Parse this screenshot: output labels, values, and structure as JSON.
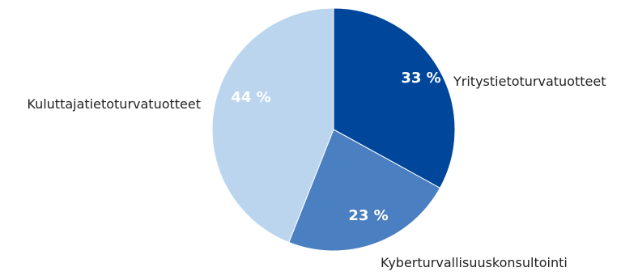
{
  "chart_data": {
    "type": "pie",
    "start_angle_deg": 0,
    "direction": "clockwise",
    "slices": [
      {
        "label": "Yritystietoturvatuotteet",
        "value": 33,
        "value_label": "33 %",
        "color": "#00479b"
      },
      {
        "label": "Kyberturvallisuuskonsultointi",
        "value": 23,
        "value_label": "23 %",
        "color": "#4a7fc1"
      },
      {
        "label": "Kuluttajatietoturvatuotteet",
        "value": 44,
        "value_label": "44 %",
        "color": "#bcd5ef"
      }
    ]
  }
}
